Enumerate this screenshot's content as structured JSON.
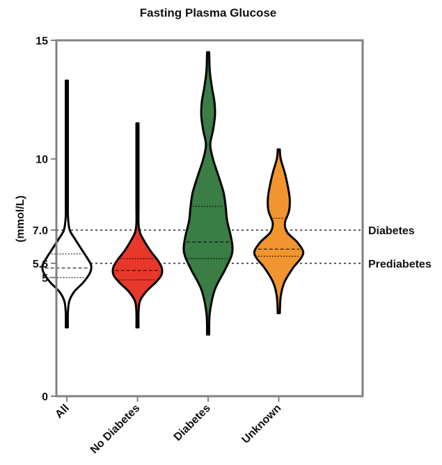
{
  "chart_data": {
    "type": "violin",
    "title": "Fasting Plasma Glucose",
    "ylabel": "(mmol/L)",
    "xlabel": "",
    "ylim": [
      0,
      15
    ],
    "yticks": [
      {
        "value": 0,
        "label": "0"
      },
      {
        "value": 5,
        "label": "5"
      },
      {
        "value": 5.6,
        "label": "5.6"
      },
      {
        "value": 7.0,
        "label": "7.0"
      },
      {
        "value": 10,
        "label": "10"
      },
      {
        "value": 15,
        "label": "15"
      }
    ],
    "reference_lines": [
      {
        "value": 7.0,
        "label": "Diabetes"
      },
      {
        "value": 5.6,
        "label": "Prediabetes"
      }
    ],
    "grid": false,
    "legend": "none",
    "categories": [
      "All",
      "No Diabetes",
      "Diabetes",
      "Unknown"
    ],
    "series": [
      {
        "category": "All",
        "color": "#ffffff",
        "min": 2.9,
        "q1": 5.0,
        "median": 5.4,
        "q3": 6.0,
        "max": 13.3,
        "density": [
          [
            2.9,
            0.0
          ],
          [
            3.5,
            0.02
          ],
          [
            4.0,
            0.1
          ],
          [
            4.4,
            0.3
          ],
          [
            4.8,
            0.68
          ],
          [
            5.2,
            0.95
          ],
          [
            5.5,
            1.0
          ],
          [
            5.8,
            0.85
          ],
          [
            6.2,
            0.6
          ],
          [
            6.6,
            0.35
          ],
          [
            7.0,
            0.12
          ],
          [
            7.5,
            0.05
          ],
          [
            8.0,
            0.04
          ],
          [
            8.5,
            0.03
          ],
          [
            9.5,
            0.02
          ],
          [
            10.5,
            0.02
          ],
          [
            11.5,
            0.01
          ],
          [
            13.3,
            0.0
          ]
        ]
      },
      {
        "category": "No Diabetes",
        "color": "#e8382b",
        "min": 2.9,
        "q1": 4.9,
        "median": 5.3,
        "q3": 5.8,
        "max": 11.5,
        "density": [
          [
            2.9,
            0.0
          ],
          [
            3.5,
            0.03
          ],
          [
            4.0,
            0.1
          ],
          [
            4.4,
            0.35
          ],
          [
            4.8,
            0.75
          ],
          [
            5.1,
            0.98
          ],
          [
            5.4,
            1.0
          ],
          [
            5.7,
            0.85
          ],
          [
            6.1,
            0.55
          ],
          [
            6.5,
            0.3
          ],
          [
            6.9,
            0.1
          ],
          [
            7.3,
            0.02
          ],
          [
            8.0,
            0.01
          ],
          [
            9.0,
            0.01
          ],
          [
            10.0,
            0.01
          ],
          [
            11.5,
            0.0
          ]
        ]
      },
      {
        "category": "Diabetes",
        "color": "#3a7d45",
        "min": 2.6,
        "q1": 5.8,
        "median": 6.5,
        "q3": 8.0,
        "max": 14.5,
        "density": [
          [
            2.6,
            0.0
          ],
          [
            3.5,
            0.07
          ],
          [
            4.5,
            0.28
          ],
          [
            5.3,
            0.68
          ],
          [
            5.9,
            0.95
          ],
          [
            6.3,
            1.0
          ],
          [
            6.8,
            0.92
          ],
          [
            7.4,
            0.78
          ],
          [
            8.0,
            0.72
          ],
          [
            8.6,
            0.63
          ],
          [
            9.3,
            0.42
          ],
          [
            10.0,
            0.2
          ],
          [
            10.6,
            0.09
          ],
          [
            11.2,
            0.2
          ],
          [
            11.8,
            0.28
          ],
          [
            12.4,
            0.26
          ],
          [
            13.0,
            0.16
          ],
          [
            13.7,
            0.07
          ],
          [
            14.5,
            0.0
          ]
        ]
      },
      {
        "category": "Unknown",
        "color": "#f2952e",
        "min": 3.5,
        "q1": 5.9,
        "median": 6.2,
        "q3": 7.5,
        "max": 10.4,
        "density": [
          [
            3.5,
            0.0
          ],
          [
            4.2,
            0.08
          ],
          [
            4.8,
            0.23
          ],
          [
            5.4,
            0.58
          ],
          [
            5.8,
            0.9
          ],
          [
            6.1,
            1.0
          ],
          [
            6.5,
            0.75
          ],
          [
            6.9,
            0.35
          ],
          [
            7.3,
            0.25
          ],
          [
            7.8,
            0.42
          ],
          [
            8.3,
            0.45
          ],
          [
            8.8,
            0.38
          ],
          [
            9.4,
            0.25
          ],
          [
            10.0,
            0.08
          ],
          [
            10.4,
            0.0
          ]
        ]
      }
    ]
  }
}
